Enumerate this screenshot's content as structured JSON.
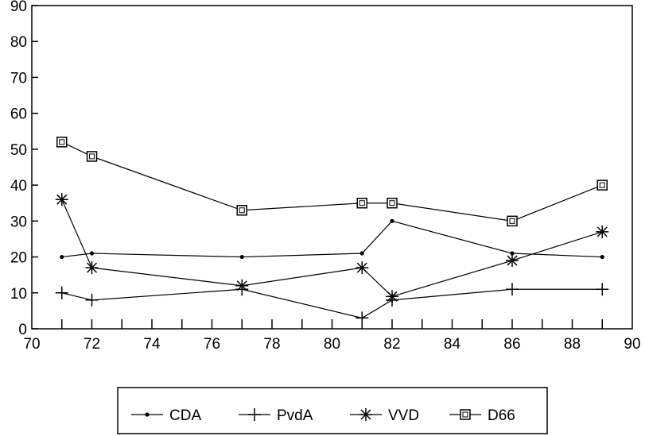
{
  "chart_data": {
    "type": "line",
    "title": "",
    "xlabel": "",
    "ylabel": "",
    "xlim": [
      70,
      90
    ],
    "ylim": [
      0,
      90
    ],
    "x_ticks": [
      70,
      72,
      74,
      76,
      78,
      80,
      82,
      84,
      86,
      88,
      90
    ],
    "y_ticks": [
      0,
      10,
      20,
      30,
      40,
      50,
      60,
      70,
      80,
      90
    ],
    "x_tick_labels": [
      "70",
      "72",
      "74",
      "76",
      "78",
      "80",
      "82",
      "84",
      "86",
      "88",
      "90"
    ],
    "y_tick_labels": [
      "0",
      "10",
      "20",
      "30",
      "40",
      "50",
      "60",
      "70",
      "80",
      "90"
    ],
    "grid": false,
    "legend_position": "bottom",
    "x": [
      71,
      72,
      77,
      81,
      82,
      86,
      89
    ],
    "series": [
      {
        "name": "CDA",
        "marker": "dot",
        "values": [
          20,
          21,
          20,
          21,
          30,
          21,
          20
        ]
      },
      {
        "name": "PvdA",
        "marker": "plus",
        "values": [
          10,
          8,
          11,
          3,
          8,
          11,
          11
        ]
      },
      {
        "name": "VVD",
        "marker": "star",
        "values": [
          36,
          17,
          12,
          17,
          9,
          19,
          27
        ]
      },
      {
        "name": "D66",
        "marker": "square",
        "values": [
          52,
          48,
          33,
          35,
          35,
          30,
          40
        ]
      }
    ]
  },
  "colors": {
    "line": "#000000",
    "background": "#ffffff"
  }
}
